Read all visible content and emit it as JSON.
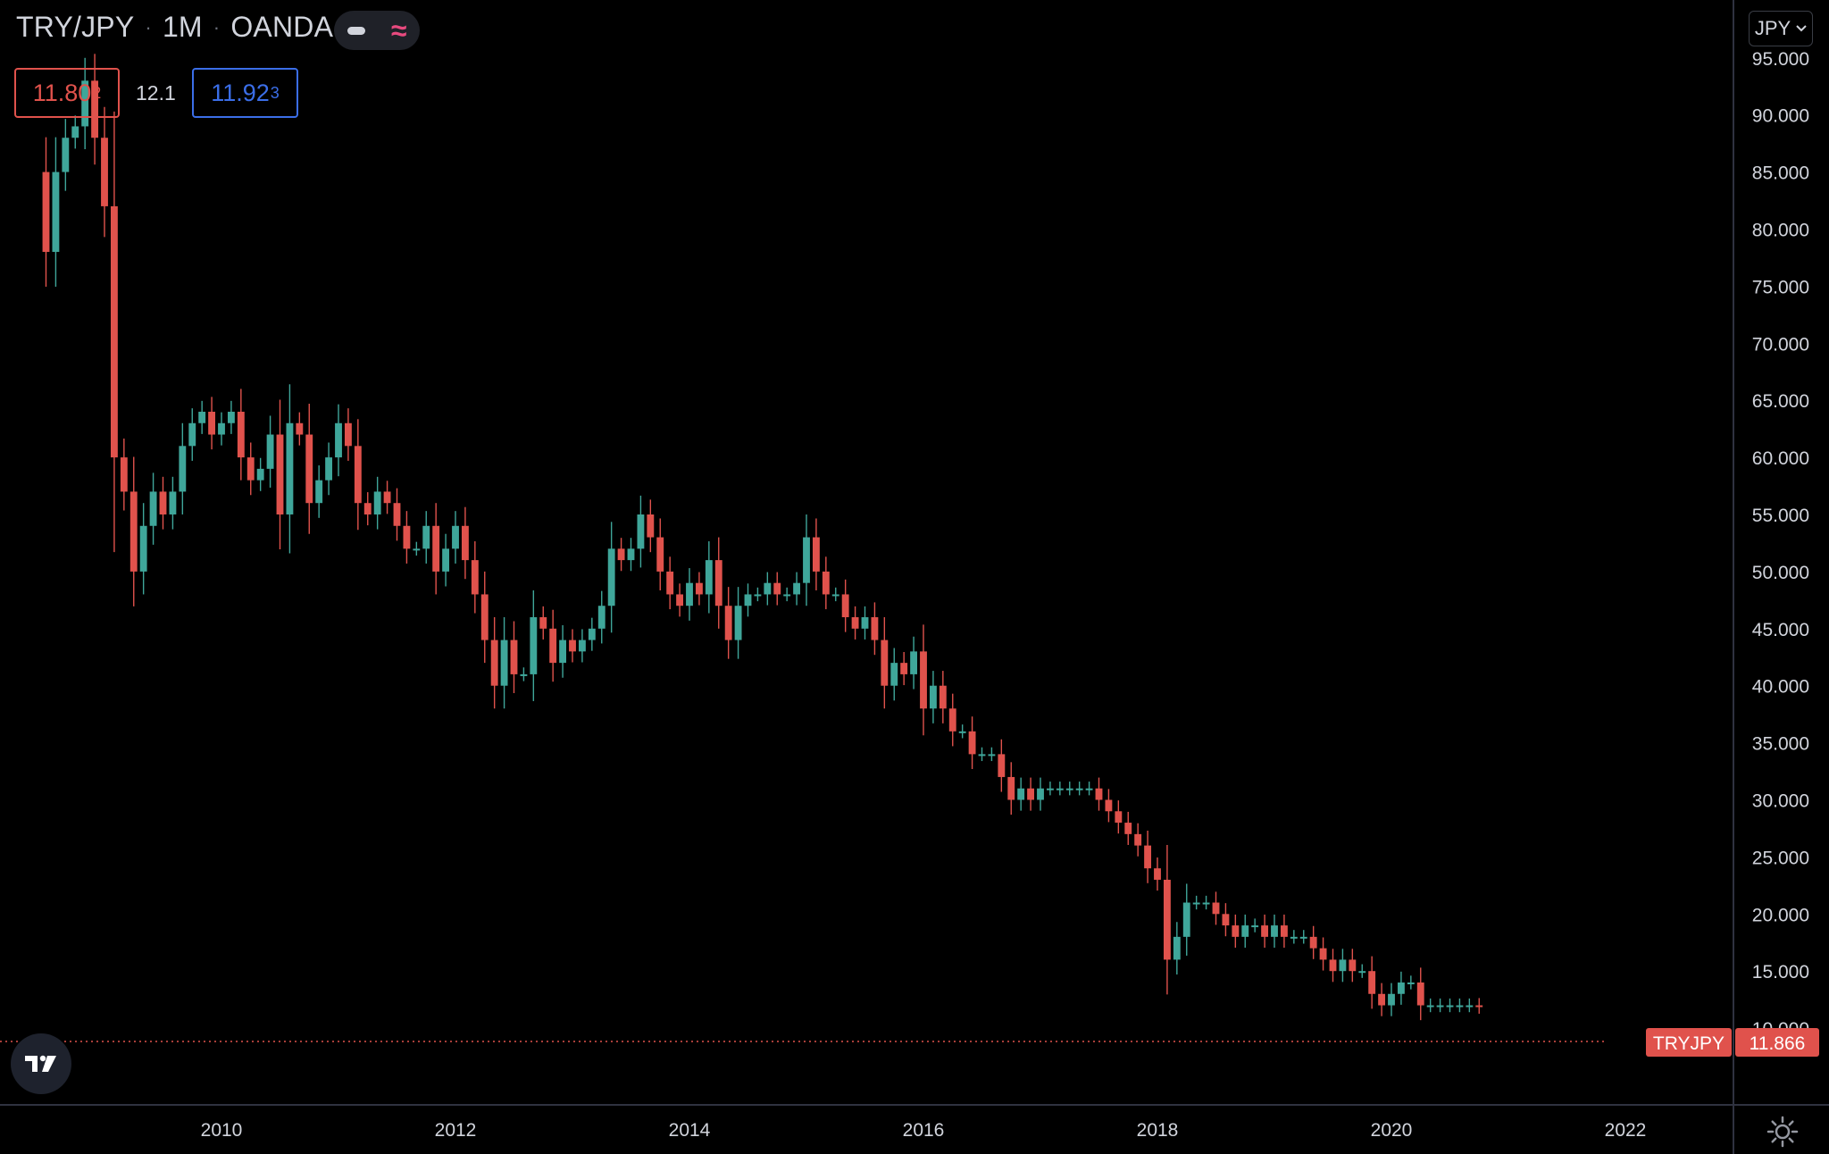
{
  "header": {
    "symbol": "TRY/JPY",
    "interval": "1M",
    "exchange": "OANDA"
  },
  "bid": {
    "main": "11.80",
    "sup": "2"
  },
  "spread": "12.1",
  "ask": {
    "main": "11.92",
    "sup": "3"
  },
  "currency_button": "JPY",
  "icons": {
    "toggle_line": "line-style-icon",
    "toggle_wave": "wave-icon",
    "dropdown": "chevron-down-icon",
    "logo": "tradingview-logo-icon",
    "settings": "gear-icon"
  },
  "colors": {
    "up": "#3fa69a",
    "down": "#e0524c",
    "axis_text": "#d1d4dc",
    "price_line": "#e0524c"
  },
  "chart_data": {
    "type": "candlestick",
    "symbol": "TRYJPY",
    "last_price": 11.866,
    "last_label": "TRYJPY",
    "last_value_label": "11.866",
    "y_ticks": [
      "10.000",
      "15.000",
      "20.000",
      "25.000",
      "30.000",
      "35.000",
      "40.000",
      "45.000",
      "50.000",
      "55.000",
      "60.000",
      "65.000",
      "70.000",
      "75.000",
      "80.000",
      "85.000",
      "90.000",
      "95.000"
    ],
    "y_tick_values": [
      10,
      15,
      20,
      25,
      30,
      35,
      40,
      45,
      50,
      55,
      60,
      65,
      70,
      75,
      80,
      85,
      90,
      95
    ],
    "ylim": [
      6.8,
      96
    ],
    "x_ticks": [
      "2010",
      "2012",
      "2014",
      "2016",
      "2018",
      "2020",
      "2022"
    ],
    "x_tick_values": [
      "2010-01",
      "2012-01",
      "2014-01",
      "2016-01",
      "2018-01",
      "2020-01",
      "2022-01"
    ],
    "first_month": "2008-07",
    "close": [
      78,
      85,
      88,
      89,
      93,
      88,
      82,
      60,
      57,
      50,
      54,
      57,
      55,
      57,
      61,
      63,
      64,
      62,
      63,
      64,
      60,
      58,
      59,
      62,
      55,
      63,
      62,
      56,
      58,
      60,
      63,
      61,
      56,
      55,
      57,
      56,
      54,
      52,
      52,
      54,
      50,
      52,
      54,
      51,
      48,
      44,
      40,
      44,
      41,
      41,
      46,
      45,
      42,
      44,
      43,
      44,
      45,
      47,
      52,
      51,
      52,
      55,
      53,
      50,
      48,
      47,
      49,
      48,
      51,
      47,
      44,
      47,
      48,
      48,
      49,
      48,
      48,
      49,
      53,
      50,
      48,
      48,
      46,
      45,
      46,
      44,
      40,
      42,
      41,
      43,
      38,
      40,
      38,
      36,
      36,
      34,
      34,
      34,
      32,
      30,
      31,
      30,
      31,
      31,
      31,
      31,
      31,
      31,
      30,
      29,
      28,
      27,
      26,
      24,
      23,
      16,
      18,
      21,
      21,
      21,
      20,
      19,
      18,
      19,
      19,
      18,
      19,
      18,
      18,
      18,
      17,
      16,
      15,
      16,
      15,
      15,
      13,
      12,
      13,
      14,
      14,
      12,
      12,
      12,
      12,
      12,
      12,
      11.9
    ],
    "open": [
      85,
      78,
      85,
      88,
      89,
      93,
      88,
      82,
      60,
      57,
      50,
      54,
      57,
      55,
      57,
      61,
      63,
      64,
      62,
      63,
      64,
      60,
      58,
      59,
      62,
      55,
      63,
      62,
      56,
      58,
      60,
      63,
      61,
      56,
      55,
      57,
      56,
      54,
      52,
      52,
      54,
      50,
      52,
      54,
      51,
      48,
      44,
      40,
      44,
      41,
      41,
      46,
      45,
      42,
      44,
      43,
      44,
      45,
      47,
      52,
      51,
      52,
      55,
      53,
      50,
      48,
      47,
      49,
      48,
      51,
      47,
      44,
      47,
      48,
      48,
      49,
      48,
      48,
      49,
      53,
      50,
      48,
      48,
      46,
      45,
      46,
      44,
      40,
      42,
      41,
      43,
      38,
      40,
      38,
      36,
      36,
      34,
      34,
      34,
      32,
      30,
      31,
      30,
      31,
      31,
      31,
      31,
      31,
      31,
      30,
      29,
      28,
      27,
      26,
      24,
      23,
      16,
      18,
      21,
      21,
      21,
      20,
      19,
      18,
      19,
      19,
      18,
      19,
      18,
      18,
      18,
      17,
      16,
      15,
      16,
      15,
      15,
      13,
      12,
      13,
      14,
      14,
      12,
      12,
      12,
      12,
      12,
      12
    ]
  }
}
